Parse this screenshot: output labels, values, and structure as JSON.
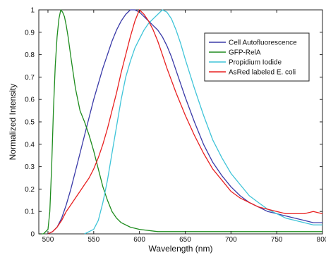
{
  "chart_data": {
    "type": "line",
    "title": "",
    "xlabel": "Wavelength (nm)",
    "ylabel": "Normalized Intensity",
    "xlim": [
      490,
      800
    ],
    "ylim": [
      0,
      1
    ],
    "x_ticks": [
      500,
      550,
      600,
      650,
      700,
      750,
      800
    ],
    "y_ticks": [
      0,
      0.1,
      0.2,
      0.3,
      0.4,
      0.5,
      0.6,
      0.7,
      0.8,
      0.9,
      1
    ],
    "grid": false,
    "legend_position": "top-right",
    "series": [
      {
        "name": "Cell Autofluorescence",
        "color": "#3a3aa8",
        "x": [
          500,
          505,
          510,
          515,
          520,
          525,
          530,
          535,
          540,
          545,
          550,
          555,
          560,
          565,
          570,
          575,
          580,
          585,
          590,
          595,
          600,
          605,
          610,
          615,
          620,
          625,
          630,
          635,
          640,
          645,
          650,
          660,
          670,
          680,
          690,
          700,
          710,
          720,
          730,
          740,
          750,
          760,
          770,
          780,
          790,
          800
        ],
        "y": [
          0.0,
          0.01,
          0.03,
          0.07,
          0.13,
          0.2,
          0.28,
          0.36,
          0.44,
          0.52,
          0.6,
          0.67,
          0.74,
          0.8,
          0.86,
          0.91,
          0.95,
          0.98,
          1.0,
          1.0,
          0.99,
          0.97,
          0.95,
          0.93,
          0.91,
          0.88,
          0.84,
          0.79,
          0.73,
          0.67,
          0.61,
          0.5,
          0.4,
          0.32,
          0.26,
          0.21,
          0.17,
          0.14,
          0.12,
          0.1,
          0.09,
          0.08,
          0.07,
          0.06,
          0.05,
          0.05
        ]
      },
      {
        "name": "GFP-RelA",
        "color": "#1e8c1e",
        "x": [
          490,
          495,
          500,
          502,
          504,
          506,
          508,
          510,
          512,
          514,
          516,
          518,
          520,
          522,
          525,
          530,
          535,
          540,
          545,
          550,
          555,
          560,
          565,
          570,
          575,
          580,
          590,
          600,
          620,
          650,
          700,
          750,
          800
        ],
        "y": [
          0.0,
          0.0,
          0.02,
          0.1,
          0.3,
          0.55,
          0.75,
          0.88,
          0.96,
          1.0,
          0.99,
          0.97,
          0.93,
          0.88,
          0.79,
          0.65,
          0.55,
          0.5,
          0.44,
          0.37,
          0.29,
          0.21,
          0.15,
          0.1,
          0.07,
          0.05,
          0.03,
          0.02,
          0.01,
          0.01,
          0.01,
          0.01,
          0.01
        ]
      },
      {
        "name": "Propidium Iodide",
        "color": "#3fc4d8",
        "x": [
          540,
          550,
          555,
          560,
          565,
          570,
          575,
          580,
          585,
          590,
          595,
          600,
          605,
          610,
          615,
          620,
          625,
          630,
          635,
          640,
          645,
          650,
          660,
          670,
          680,
          690,
          700,
          710,
          720,
          730,
          740,
          750,
          760,
          770,
          780,
          790,
          800
        ],
        "y": [
          0.0,
          0.02,
          0.06,
          0.14,
          0.24,
          0.36,
          0.48,
          0.6,
          0.7,
          0.77,
          0.83,
          0.87,
          0.91,
          0.94,
          0.96,
          0.98,
          1.0,
          0.99,
          0.96,
          0.91,
          0.85,
          0.78,
          0.65,
          0.53,
          0.42,
          0.34,
          0.27,
          0.22,
          0.17,
          0.14,
          0.11,
          0.09,
          0.07,
          0.06,
          0.05,
          0.04,
          0.04
        ]
      },
      {
        "name": "AsRed labeled E. coli",
        "color": "#e82020",
        "x": [
          500,
          505,
          510,
          515,
          520,
          525,
          530,
          535,
          540,
          545,
          550,
          555,
          560,
          565,
          570,
          575,
          580,
          585,
          590,
          595,
          600,
          605,
          610,
          615,
          620,
          625,
          630,
          640,
          650,
          660,
          670,
          680,
          690,
          700,
          710,
          720,
          730,
          740,
          750,
          760,
          770,
          780,
          790,
          800
        ],
        "y": [
          0.0,
          0.01,
          0.03,
          0.06,
          0.1,
          0.13,
          0.16,
          0.19,
          0.22,
          0.25,
          0.29,
          0.34,
          0.4,
          0.47,
          0.55,
          0.63,
          0.72,
          0.8,
          0.88,
          0.95,
          1.0,
          0.98,
          0.95,
          0.91,
          0.86,
          0.8,
          0.74,
          0.63,
          0.53,
          0.44,
          0.36,
          0.29,
          0.24,
          0.19,
          0.16,
          0.14,
          0.12,
          0.11,
          0.1,
          0.09,
          0.09,
          0.09,
          0.1,
          0.09
        ]
      }
    ]
  }
}
